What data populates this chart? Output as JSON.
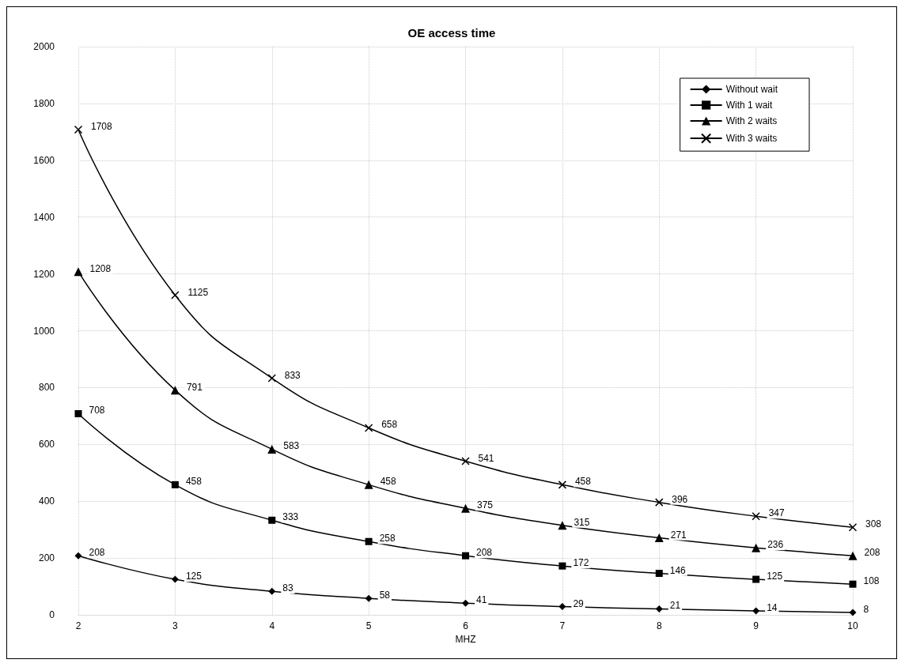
{
  "chart_data": {
    "type": "line",
    "title": "OE access time",
    "xlabel": "MHZ",
    "x": [
      2,
      3,
      4,
      5,
      6,
      7,
      8,
      9,
      10
    ],
    "series": [
      {
        "name": "Without wait",
        "color": "#000000",
        "marker": "diamond",
        "values": [
          208,
          125,
          83,
          58,
          41,
          29,
          21,
          14,
          8
        ]
      },
      {
        "name": "With 1 wait",
        "color": "#000000",
        "marker": "square",
        "values": [
          708,
          458,
          333,
          258,
          208,
          172,
          146,
          125,
          108
        ]
      },
      {
        "name": "With 2 waits",
        "color": "#000000",
        "marker": "triangle",
        "values": [
          1208,
          791,
          583,
          458,
          375,
          315,
          271,
          236,
          208
        ]
      },
      {
        "name": "With 3 waits",
        "color": "#000000",
        "marker": "cross",
        "values": [
          1708,
          1125,
          833,
          658,
          541,
          458,
          396,
          347,
          308
        ]
      }
    ],
    "xlim": [
      2,
      10
    ],
    "xticks": [
      2,
      3,
      4,
      5,
      6,
      7,
      8,
      9,
      10
    ],
    "ylim": [
      0,
      2000
    ],
    "yticks": [
      0,
      200,
      400,
      600,
      800,
      1000,
      1200,
      1400,
      1600,
      1800,
      2000
    ],
    "grid": true,
    "legend": "top right",
    "data_labels": true,
    "line_style": "solid"
  }
}
